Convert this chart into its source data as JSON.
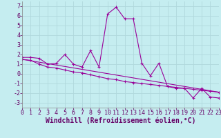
{
  "xlabel": "Windchill (Refroidissement éolien,°C)",
  "bg_color": "#c5edf0",
  "grid_color": "#b0d8dc",
  "line_color": "#990099",
  "xlim": [
    0,
    23
  ],
  "ylim": [
    -3.5,
    7.5
  ],
  "xticks": [
    0,
    1,
    2,
    3,
    4,
    5,
    6,
    7,
    8,
    9,
    10,
    11,
    12,
    13,
    14,
    15,
    16,
    17,
    18,
    19,
    20,
    21,
    22,
    23
  ],
  "yticks": [
    -3,
    -2,
    -1,
    0,
    1,
    2,
    3,
    4,
    5,
    6,
    7
  ],
  "line1_x": [
    0,
    1,
    2,
    3,
    4,
    5,
    6,
    7,
    8,
    9,
    10,
    11,
    12,
    13,
    14,
    15,
    16,
    17,
    18,
    19,
    20,
    21,
    22,
    23
  ],
  "line1_y": [
    1.7,
    1.7,
    1.6,
    1.0,
    1.1,
    2.0,
    1.0,
    0.7,
    2.4,
    0.7,
    6.2,
    6.9,
    5.7,
    5.7,
    1.1,
    -0.2,
    1.1,
    -1.3,
    -1.5,
    -1.5,
    -2.5,
    -1.5,
    -2.4,
    -2.5
  ],
  "line2_x": [
    0,
    1,
    2,
    3,
    4,
    5,
    6,
    7,
    8,
    9,
    10,
    11,
    12,
    13,
    14,
    15,
    16,
    17,
    18,
    19,
    20,
    21,
    22,
    23
  ],
  "line2_y": [
    1.5,
    1.4,
    1.0,
    0.7,
    0.6,
    0.4,
    0.2,
    0.1,
    -0.1,
    -0.3,
    -0.5,
    -0.6,
    -0.8,
    -0.9,
    -1.0,
    -1.1,
    -1.2,
    -1.3,
    -1.4,
    -1.5,
    -1.6,
    -1.7,
    -1.8,
    -1.9
  ],
  "line3_x": [
    0,
    23
  ],
  "line3_y": [
    1.5,
    -1.9
  ],
  "xlabel_fontsize": 7,
  "tick_fontsize": 6
}
